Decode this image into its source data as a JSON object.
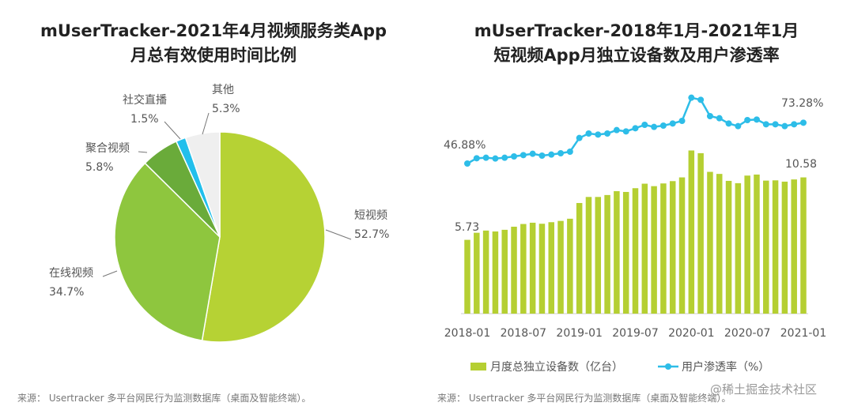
{
  "left": {
    "title_line1": "mUserTracker-2021年4月视频服务类App",
    "title_line2": "月总有效使用时间比例",
    "source": "来源： Usertracker 多平台网民行为监测数据库（桌面及智能终端）。"
  },
  "right": {
    "title_line1": "mUserTracker-2018年1月-2021年1月",
    "title_line2": "短视频App月独立设备数及用户渗透率",
    "source": "来源： Usertracker 多平台网民行为监测数据库（桌面及智能终端）。"
  },
  "watermark": "@稀土掘金技术社区",
  "chart_data": [
    {
      "type": "pie",
      "title": "mUserTracker-2021年4月视频服务类App月总有效使用时间比例",
      "slices": [
        {
          "label": "短视频",
          "value": 52.7,
          "text": "52.7%",
          "color": "#b6d234"
        },
        {
          "label": "在线视频",
          "value": 34.7,
          "text": "34.7%",
          "color": "#8ec63e"
        },
        {
          "label": "聚合视频",
          "value": 5.8,
          "text": "5.8%",
          "color": "#6aab3a"
        },
        {
          "label": "社交直播",
          "value": 1.5,
          "text": "1.5%",
          "color": "#22bfec"
        },
        {
          "label": "其他",
          "value": 5.3,
          "text": "5.3%",
          "color": "#efefef"
        }
      ]
    },
    {
      "type": "bar+line",
      "title": "mUserTracker-2018年1月-2021年1月短视频App月独立设备数及用户渗透率",
      "x_ticks": [
        "2018-01",
        "2018-07",
        "2019-01",
        "2019-07",
        "2020-01",
        "2020-07",
        "2021-01"
      ],
      "legend": [
        "月度总独立设备数（亿台）",
        "用户渗透率（%）"
      ],
      "legend_position": "bottom",
      "bar_color": "#b5cf32",
      "line_color": "#2dbde8",
      "series": [
        {
          "name": "月度总独立设备数（亿台）",
          "type": "bar",
          "values": [
            5.73,
            6.28,
            6.45,
            6.38,
            6.51,
            6.75,
            6.96,
            7.06,
            6.98,
            7.1,
            7.2,
            7.37,
            8.59,
            9.06,
            9.06,
            9.21,
            9.51,
            9.45,
            9.74,
            10.09,
            9.9,
            10.11,
            10.29,
            10.58,
            12.67,
            12.46,
            11.01,
            10.85,
            10.31,
            10.13,
            10.72,
            10.8,
            10.33,
            10.35,
            10.25,
            10.42,
            10.58
          ],
          "labels": {
            "first": "5.73",
            "last": "10.58"
          }
        },
        {
          "name": "用户渗透率（%）",
          "type": "line",
          "values": [
            46.88,
            50.29,
            50.63,
            50.12,
            50.63,
            51.48,
            52.33,
            53.18,
            51.99,
            52.67,
            53.52,
            54.55,
            63.4,
            66.3,
            65.62,
            66.3,
            68.52,
            67.66,
            69.71,
            71.92,
            70.56,
            71.41,
            72.77,
            74.48,
            89.47,
            88.11,
            77.54,
            76.18,
            72.77,
            71.07,
            74.99,
            75.33,
            72.26,
            72.26,
            71.07,
            72.26,
            73.28
          ],
          "labels": {
            "first": "46.88%",
            "last": "73.28%"
          }
        }
      ]
    }
  ]
}
